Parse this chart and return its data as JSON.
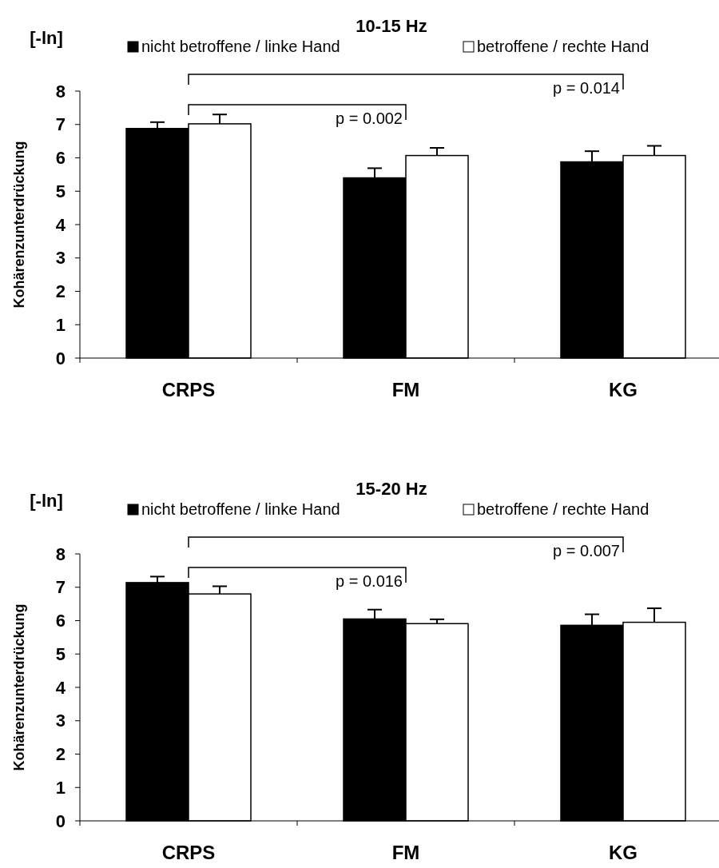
{
  "chart_data": [
    {
      "type": "bar",
      "title": "10-15 Hz",
      "ylabel": "Kohärenzunterdrückung",
      "categories": [
        "CRPS",
        "FM",
        "KG"
      ],
      "series": [
        {
          "name": "nicht betroffene / linke Hand",
          "color": "#000000",
          "values": [
            6.88,
            5.4,
            5.88
          ],
          "errors": [
            [
              6.88,
              7.07
            ],
            [
              5.4,
              5.69
            ],
            [
              5.88,
              6.2
            ]
          ]
        },
        {
          "name": "betroffene / rechte Hand",
          "color": "#ffffff",
          "values": [
            7.02,
            6.07,
            6.07
          ],
          "errors": [
            [
              7.02,
              7.3
            ],
            [
              6.07,
              6.3
            ],
            [
              6.07,
              6.36
            ]
          ]
        }
      ],
      "ylim": [
        0,
        8
      ],
      "yticks": [
        0,
        1,
        2,
        3,
        4,
        5,
        6,
        7,
        8
      ],
      "grid": false,
      "legend": "top",
      "annotations": [
        "[-ln]",
        "p = 0.002",
        "p = 0.014"
      ]
    },
    {
      "type": "bar",
      "title": "15-20 Hz",
      "ylabel": "Kohärenzunterdrückung",
      "categories": [
        "CRPS",
        "FM",
        "KG"
      ],
      "series": [
        {
          "name": "nicht betroffene / linke Hand",
          "color": "#000000",
          "values": [
            7.14,
            6.05,
            5.86
          ],
          "errors": [
            [
              7.14,
              7.32
            ],
            [
              6.05,
              6.33
            ],
            [
              5.86,
              6.19
            ]
          ]
        },
        {
          "name": "betroffene / rechte Hand",
          "color": "#ffffff",
          "values": [
            6.8,
            5.91,
            5.95
          ],
          "errors": [
            [
              6.8,
              7.03
            ],
            [
              5.91,
              6.04
            ],
            [
              5.95,
              6.37
            ]
          ]
        }
      ],
      "ylim": [
        0,
        8
      ],
      "yticks": [
        0,
        1,
        2,
        3,
        4,
        5,
        6,
        7,
        8
      ],
      "grid": false,
      "legend": "top",
      "annotations": [
        "[-ln]",
        "p = 0.016",
        "p = 0.007"
      ]
    }
  ]
}
